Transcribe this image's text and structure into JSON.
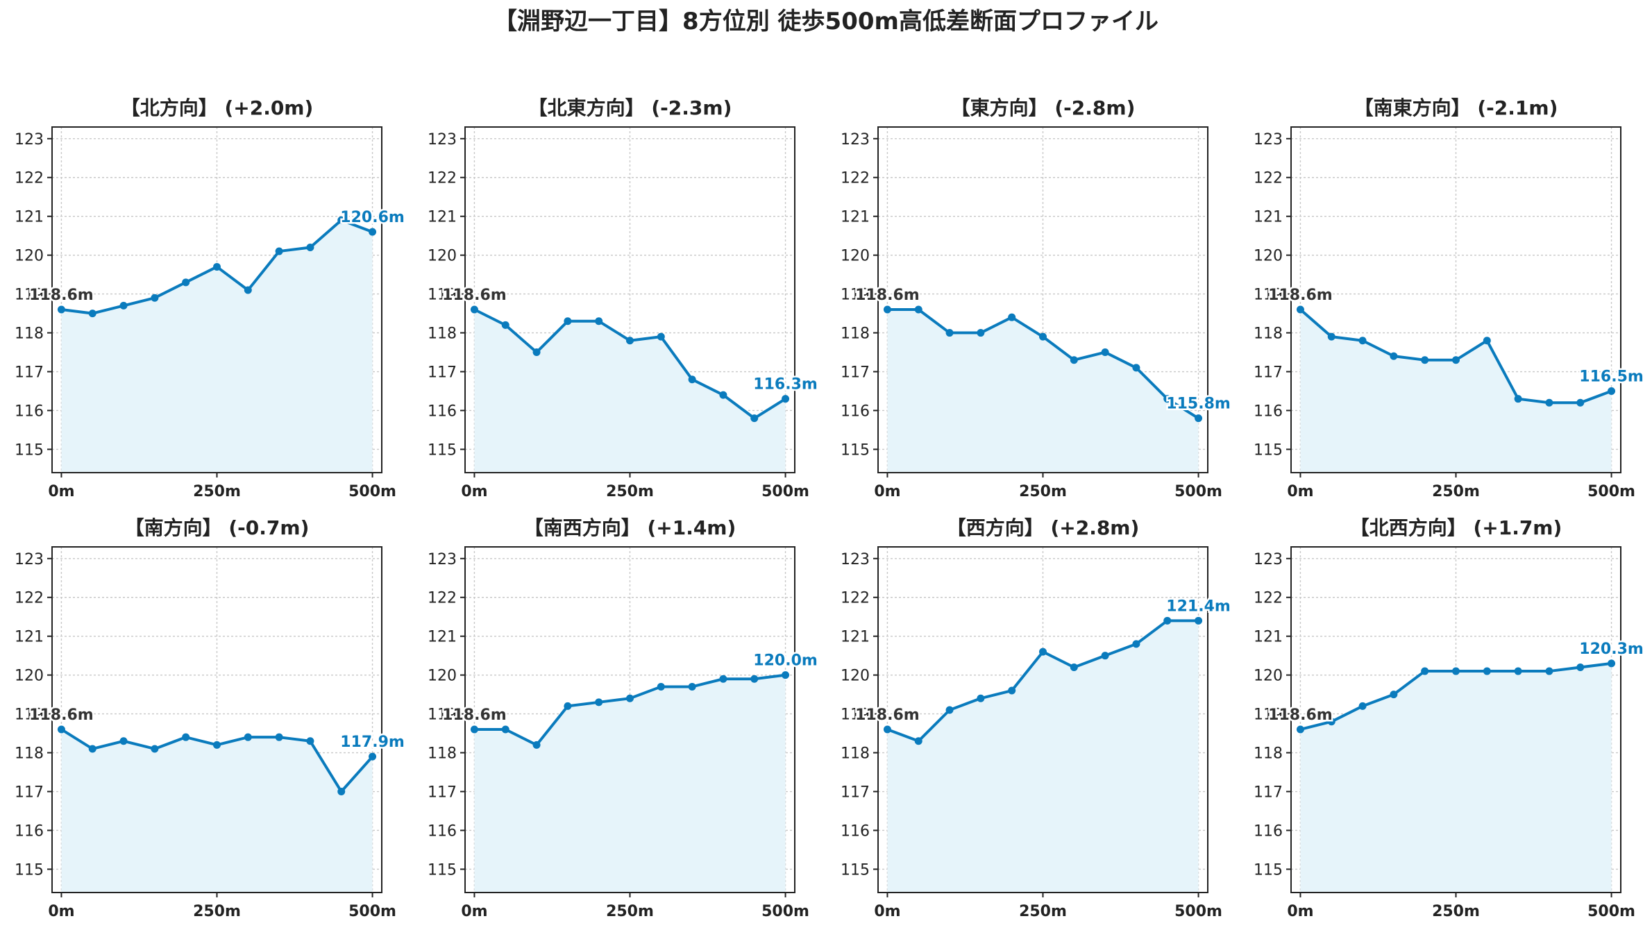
{
  "title": "【淵野辺一丁目】8方位別 徒歩500m高低差断面プロファイル",
  "colors": {
    "line": "#0a7bbd",
    "fill": "#e6f4fa",
    "start_label": "#333333",
    "end_label": "#0a7bbd"
  },
  "chart_data": [
    {
      "type": "area",
      "title": "【北方向】 (+2.0m)",
      "x": [
        0,
        50,
        100,
        150,
        200,
        250,
        300,
        350,
        400,
        450,
        500
      ],
      "values": [
        118.6,
        118.5,
        118.7,
        118.9,
        119.3,
        119.7,
        119.1,
        120.1,
        120.2,
        120.9,
        120.6
      ],
      "start_label": "118.6m",
      "end_label": "120.6m",
      "ylim": [
        114.4,
        123.3
      ],
      "xlim": [
        -15,
        515
      ],
      "yticks": [
        "115",
        "116",
        "117",
        "118",
        "119",
        "120",
        "121",
        "122",
        "123"
      ],
      "xticks": [
        0,
        250,
        500
      ],
      "xtick_labels": [
        "0m",
        "250m",
        "500m"
      ],
      "grid": true
    },
    {
      "type": "area",
      "title": "【北東方向】 (-2.3m)",
      "x": [
        0,
        50,
        100,
        150,
        200,
        250,
        300,
        350,
        400,
        450,
        500
      ],
      "values": [
        118.6,
        118.2,
        117.5,
        118.3,
        118.3,
        117.8,
        117.9,
        116.8,
        116.4,
        115.8,
        116.3
      ],
      "start_label": "118.6m",
      "end_label": "116.3m",
      "ylim": [
        114.4,
        123.3
      ],
      "xlim": [
        -15,
        515
      ],
      "yticks": [
        "115",
        "116",
        "117",
        "118",
        "119",
        "120",
        "121",
        "122",
        "123"
      ],
      "xticks": [
        0,
        250,
        500
      ],
      "xtick_labels": [
        "0m",
        "250m",
        "500m"
      ],
      "grid": true
    },
    {
      "type": "area",
      "title": "【東方向】 (-2.8m)",
      "x": [
        0,
        50,
        100,
        150,
        200,
        250,
        300,
        350,
        400,
        450,
        500
      ],
      "values": [
        118.6,
        118.6,
        118.0,
        118.0,
        118.4,
        117.9,
        117.3,
        117.5,
        117.1,
        116.3,
        115.8
      ],
      "start_label": "118.6m",
      "end_label": "115.8m",
      "ylim": [
        114.4,
        123.3
      ],
      "xlim": [
        -15,
        515
      ],
      "yticks": [
        "115",
        "116",
        "117",
        "118",
        "119",
        "120",
        "121",
        "122",
        "123"
      ],
      "xticks": [
        0,
        250,
        500
      ],
      "xtick_labels": [
        "0m",
        "250m",
        "500m"
      ],
      "grid": true
    },
    {
      "type": "area",
      "title": "【南東方向】 (-2.1m)",
      "x": [
        0,
        50,
        100,
        150,
        200,
        250,
        300,
        350,
        400,
        450,
        500
      ],
      "values": [
        118.6,
        117.9,
        117.8,
        117.4,
        117.3,
        117.3,
        117.8,
        116.3,
        116.2,
        116.2,
        116.5
      ],
      "start_label": "118.6m",
      "end_label": "116.5m",
      "ylim": [
        114.4,
        123.3
      ],
      "xlim": [
        -15,
        515
      ],
      "yticks": [
        "115",
        "116",
        "117",
        "118",
        "119",
        "120",
        "121",
        "122",
        "123"
      ],
      "xticks": [
        0,
        250,
        500
      ],
      "xtick_labels": [
        "0m",
        "250m",
        "500m"
      ],
      "grid": true
    },
    {
      "type": "area",
      "title": "【南方向】 (-0.7m)",
      "x": [
        0,
        50,
        100,
        150,
        200,
        250,
        300,
        350,
        400,
        450,
        500
      ],
      "values": [
        118.6,
        118.1,
        118.3,
        118.1,
        118.4,
        118.2,
        118.4,
        118.4,
        118.3,
        117.0,
        117.9
      ],
      "start_label": "118.6m",
      "end_label": "117.9m",
      "ylim": [
        114.4,
        123.3
      ],
      "xlim": [
        -15,
        515
      ],
      "yticks": [
        "115",
        "116",
        "117",
        "118",
        "119",
        "120",
        "121",
        "122",
        "123"
      ],
      "xticks": [
        0,
        250,
        500
      ],
      "xtick_labels": [
        "0m",
        "250m",
        "500m"
      ],
      "grid": true
    },
    {
      "type": "area",
      "title": "【南西方向】 (+1.4m)",
      "x": [
        0,
        50,
        100,
        150,
        200,
        250,
        300,
        350,
        400,
        450,
        500
      ],
      "values": [
        118.6,
        118.6,
        118.2,
        119.2,
        119.3,
        119.4,
        119.7,
        119.7,
        119.9,
        119.9,
        120.0
      ],
      "start_label": "118.6m",
      "end_label": "120.0m",
      "ylim": [
        114.4,
        123.3
      ],
      "xlim": [
        -15,
        515
      ],
      "yticks": [
        "115",
        "116",
        "117",
        "118",
        "119",
        "120",
        "121",
        "122",
        "123"
      ],
      "xticks": [
        0,
        250,
        500
      ],
      "xtick_labels": [
        "0m",
        "250m",
        "500m"
      ],
      "grid": true
    },
    {
      "type": "area",
      "title": "【西方向】 (+2.8m)",
      "x": [
        0,
        50,
        100,
        150,
        200,
        250,
        300,
        350,
        400,
        450,
        500
      ],
      "values": [
        118.6,
        118.3,
        119.1,
        119.4,
        119.6,
        120.6,
        120.2,
        120.5,
        120.8,
        121.4,
        121.4
      ],
      "start_label": "118.6m",
      "end_label": "121.4m",
      "ylim": [
        114.4,
        123.3
      ],
      "xlim": [
        -15,
        515
      ],
      "yticks": [
        "115",
        "116",
        "117",
        "118",
        "119",
        "120",
        "121",
        "122",
        "123"
      ],
      "xticks": [
        0,
        250,
        500
      ],
      "xtick_labels": [
        "0m",
        "250m",
        "500m"
      ],
      "grid": true
    },
    {
      "type": "area",
      "title": "【北西方向】 (+1.7m)",
      "x": [
        0,
        50,
        100,
        150,
        200,
        250,
        300,
        350,
        400,
        450,
        500
      ],
      "values": [
        118.6,
        118.8,
        119.2,
        119.5,
        120.1,
        120.1,
        120.1,
        120.1,
        120.1,
        120.2,
        120.3
      ],
      "start_label": "118.6m",
      "end_label": "120.3m",
      "ylim": [
        114.4,
        123.3
      ],
      "xlim": [
        -15,
        515
      ],
      "yticks": [
        "115",
        "116",
        "117",
        "118",
        "119",
        "120",
        "121",
        "122",
        "123"
      ],
      "xticks": [
        0,
        250,
        500
      ],
      "xtick_labels": [
        "0m",
        "250m",
        "500m"
      ],
      "grid": true
    }
  ]
}
